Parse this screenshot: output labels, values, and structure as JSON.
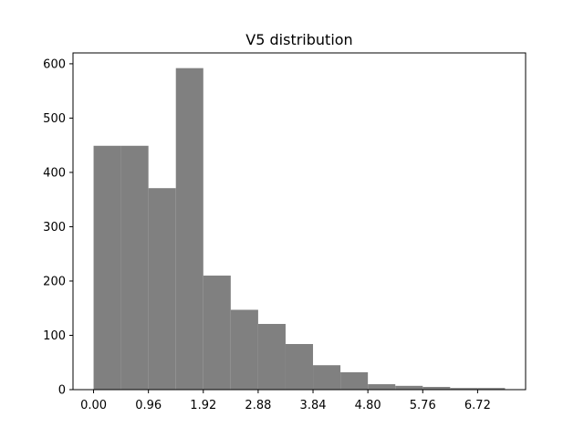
{
  "chart_data": {
    "type": "bar",
    "title": "V5 distribution",
    "xlabel": "",
    "ylabel": "",
    "bin_edges": [
      0.0,
      0.48,
      0.96,
      1.44,
      1.92,
      2.4,
      2.88,
      3.36,
      3.84,
      4.32,
      4.8,
      5.28,
      5.76,
      6.24,
      6.72,
      7.2
    ],
    "values": [
      449,
      449,
      371,
      592,
      210,
      147,
      121,
      84,
      45,
      32,
      10,
      7,
      5,
      3,
      3
    ],
    "xlim": [
      -0.36,
      7.56
    ],
    "ylim": [
      0,
      620
    ],
    "xticks": [
      0.0,
      0.96,
      1.92,
      2.88,
      3.84,
      4.8,
      5.76,
      6.72
    ],
    "xtick_labels": [
      "0.00",
      "0.96",
      "1.92",
      "2.88",
      "3.84",
      "4.80",
      "5.76",
      "6.72"
    ],
    "yticks": [
      0,
      100,
      200,
      300,
      400,
      500,
      600
    ],
    "ytick_labels": [
      "0",
      "100",
      "200",
      "300",
      "400",
      "500",
      "600"
    ],
    "bar_color": "#808080",
    "grid": false,
    "legend": "none"
  }
}
